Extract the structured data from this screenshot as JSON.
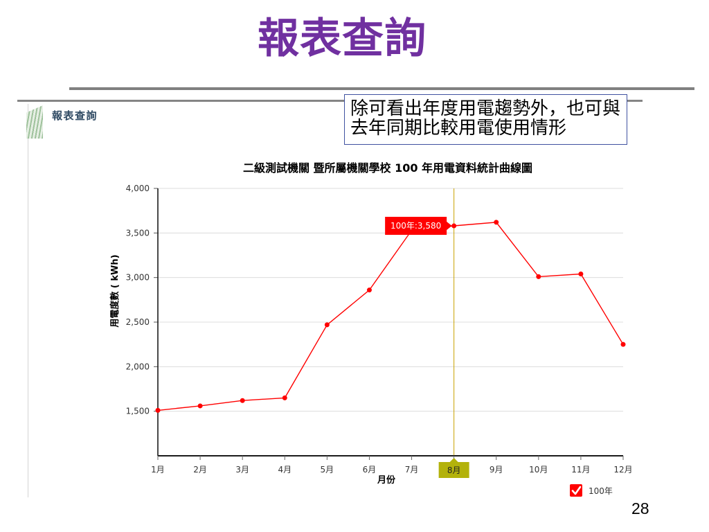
{
  "slide": {
    "title": "報表查詢",
    "callout_lines": [
      "除可看出年度用電趨勢外，也可與",
      "去年同期比較用電使用情形"
    ],
    "page_number": "28"
  },
  "panel": {
    "title": "報表查詢",
    "icon": "striped-tab-icon"
  },
  "colors": {
    "slide_title": "#7030A0",
    "rule": "#808080",
    "callout_border": "#3F51A0",
    "panel_title": "#2F4A63",
    "series": "#FF0000",
    "grid": "#DCDCDC",
    "axis": "#1A1A1A",
    "crosshair": "#C8A200",
    "crosshair_label": "#B3B20B",
    "tooltip": "#FF0000"
  },
  "chart_data": {
    "type": "line",
    "title": "二級測試機關 暨所屬機關學校 100 年用電資料統計曲線圖",
    "xlabel": "月份",
    "ylabel": "用電度數 ( kWh)",
    "categories": [
      "1月",
      "2月",
      "3月",
      "4月",
      "5月",
      "6月",
      "7月",
      "8月",
      "9月",
      "10月",
      "11月",
      "12月"
    ],
    "series": [
      {
        "name": "100年",
        "values": [
          1510,
          1560,
          1620,
          1650,
          2470,
          2860,
          3530,
          3580,
          3620,
          3010,
          3040,
          2250
        ]
      }
    ],
    "ylim": [
      1000,
      4000
    ],
    "yticks": [
      1500,
      2000,
      2500,
      3000,
      3500,
      4000
    ],
    "grid": true,
    "legend": "bottom-right",
    "crosshair": {
      "category": "8月"
    },
    "tooltip": {
      "text": "100年:3,580"
    }
  }
}
